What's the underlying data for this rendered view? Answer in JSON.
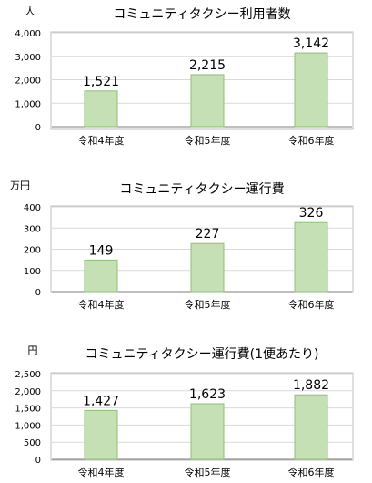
{
  "chart_data": [
    {
      "type": "bar",
      "title": "コミュニティタクシー利用者数",
      "unit": "人",
      "categories": [
        "令和4年度",
        "令和5年度",
        "令和6年度"
      ],
      "values": [
        1521,
        2215,
        3142
      ],
      "value_labels": [
        "1,521",
        "2,215",
        "3,142"
      ],
      "ylim": [
        0,
        4000
      ],
      "yticks": [
        0,
        1000,
        2000,
        3000,
        4000
      ],
      "ytick_labels": [
        "0",
        "1,000",
        "2,000",
        "3,000",
        "4,000"
      ],
      "grid": true,
      "bar_color": "#c5e0b4",
      "bar_edge": "#8fbf78"
    },
    {
      "type": "bar",
      "title": "コミュニティタクシー運行費",
      "unit": "万円",
      "categories": [
        "令和4年度",
        "令和5年度",
        "令和6年度"
      ],
      "values": [
        149,
        227,
        326
      ],
      "value_labels": [
        "149",
        "227",
        "326"
      ],
      "ylim": [
        0,
        400
      ],
      "yticks": [
        0,
        100,
        200,
        300,
        400
      ],
      "ytick_labels": [
        "0",
        "100",
        "200",
        "300",
        "400"
      ],
      "grid": true,
      "bar_color": "#c5e0b4",
      "bar_edge": "#8fbf78"
    },
    {
      "type": "bar",
      "title": "コミュニティタクシー運行費(1便あたり)",
      "unit": "円",
      "categories": [
        "令和4年度",
        "令和5年度",
        "令和6年度"
      ],
      "values": [
        1427,
        1623,
        1882
      ],
      "value_labels": [
        "1,427",
        "1,623",
        "1,882"
      ],
      "ylim": [
        0,
        2500
      ],
      "yticks": [
        0,
        500,
        1000,
        1500,
        2000,
        2500
      ],
      "ytick_labels": [
        "0",
        "500",
        "1,000",
        "1,500",
        "2,000",
        "2,500"
      ],
      "grid": true,
      "bar_color": "#c5e0b4",
      "bar_edge": "#8fbf78"
    }
  ]
}
